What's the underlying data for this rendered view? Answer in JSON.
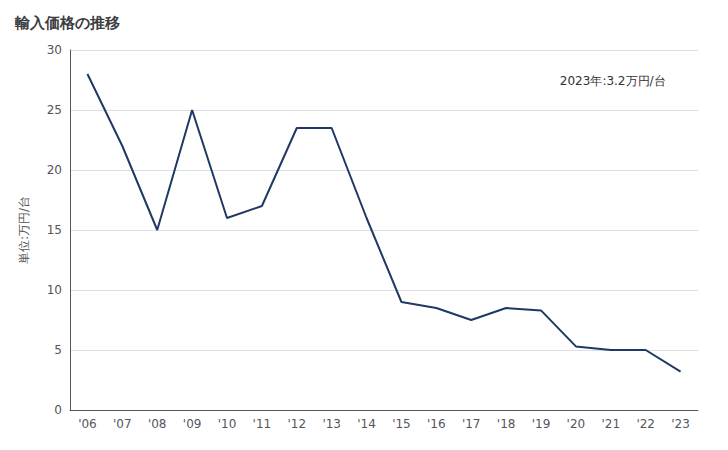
{
  "chart_data": {
    "type": "line",
    "title": "輸入価格の推移",
    "ylabel": "単位:万円/台",
    "annotation": "2023年:3.2万円/台",
    "categories": [
      "'06",
      "'07",
      "'08",
      "'09",
      "'10",
      "'11",
      "'12",
      "'13",
      "'14",
      "'15",
      "'16",
      "'17",
      "'18",
      "'19",
      "'20",
      "'21",
      "'22",
      "'23"
    ],
    "values": [
      28.0,
      22.0,
      15.0,
      25.0,
      16.0,
      17.0,
      23.5,
      23.5,
      16.0,
      9.0,
      8.5,
      7.5,
      8.5,
      8.3,
      5.3,
      5.0,
      5.0,
      3.2
    ],
    "color": "#1f3864",
    "ylim": [
      0,
      30
    ],
    "yticks": [
      0,
      5,
      10,
      15,
      20,
      25,
      30
    ],
    "grid": true
  }
}
